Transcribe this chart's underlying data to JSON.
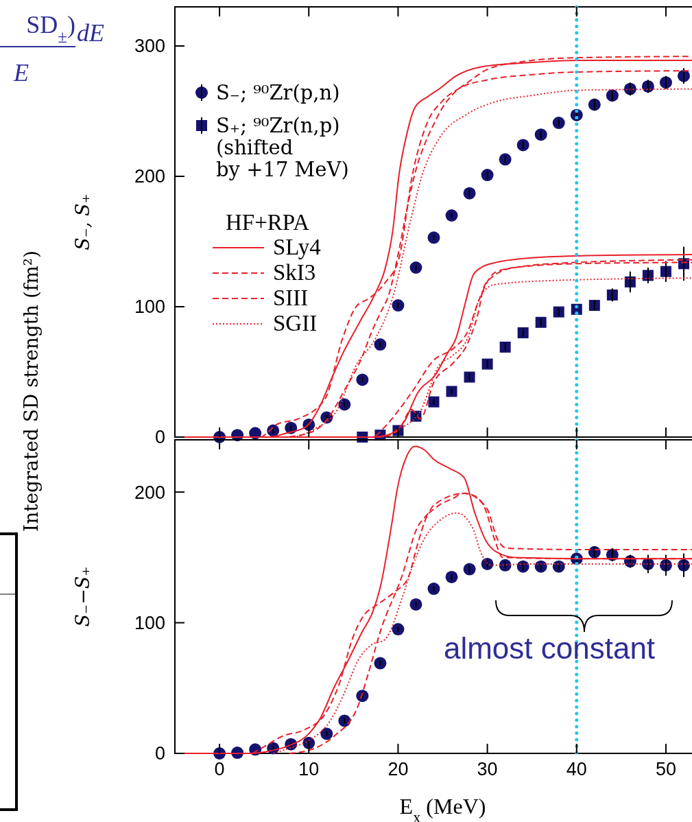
{
  "chart_data": [
    {
      "type": "line",
      "ylabel": "S₋, S₊",
      "xlim": [
        -5,
        53
      ],
      "xticks": [
        0,
        10,
        20,
        30,
        40,
        50
      ],
      "ylim": [
        0,
        330
      ],
      "yticks": [
        0,
        100,
        200,
        300
      ],
      "tick_labels": "y",
      "grid": false,
      "legend": "top left",
      "legend_title": "HF+RPA",
      "annotations": [
        "Integrated SD strength (fm²)",
        "SD$_{±}$)",
        "dE",
        "E"
      ],
      "ref_lines": [
        {
          "axis": "x",
          "value": 40,
          "color": "#22c6f0",
          "line_style": "dotted"
        }
      ],
      "series": [
        {
          "name": "S₋; ⁹⁰Zr(p,n)",
          "type": "scatter",
          "marker": "circle",
          "color": "#15126e",
          "x": [
            0,
            2,
            4,
            6,
            8,
            10,
            12,
            14,
            16,
            18,
            20,
            22,
            24,
            26,
            28,
            30,
            32,
            34,
            36,
            38,
            40,
            42,
            44,
            46,
            48,
            50,
            52
          ],
          "values": [
            0,
            1.5,
            3,
            5,
            7,
            9.5,
            15,
            25,
            44,
            71,
            101,
            130,
            153,
            170,
            187,
            201,
            213,
            224,
            232,
            241,
            247,
            255,
            262,
            267,
            269,
            272,
            277
          ],
          "errors": [
            null,
            null,
            null,
            2,
            2,
            2,
            2,
            2,
            2,
            2,
            2,
            2,
            2,
            2,
            3,
            3,
            3,
            3,
            3,
            3,
            4,
            4,
            4,
            5,
            5,
            5,
            6
          ]
        },
        {
          "name": "S₊; ⁹⁰Zr(n,p)\n(shifted\n by +17 MeV)",
          "type": "scatter",
          "marker": "square",
          "color": "#15126e",
          "x": [
            16,
            18,
            20,
            22,
            24,
            26,
            28,
            30,
            32,
            34,
            36,
            38,
            40,
            42,
            44,
            46,
            48,
            50,
            52
          ],
          "values": [
            0,
            1.5,
            5,
            16,
            27,
            35,
            46,
            56,
            69,
            80,
            88,
            96,
            98,
            101,
            109,
            119,
            124,
            127,
            133
          ],
          "errors": [
            null,
            null,
            2,
            2,
            2,
            2,
            3,
            3,
            3,
            3,
            3,
            3,
            null,
            4,
            5,
            8,
            6,
            8,
            13
          ]
        },
        {
          "name": "SLy4",
          "line_style": "solid",
          "color": "#e8202a",
          "x": [
            -4,
            5.5,
            7.5,
            9.7,
            11.2,
            12.5,
            13.8,
            15.6,
            17.5,
            18.5,
            19.4,
            20.1,
            21,
            21.5,
            21.9,
            23.3,
            24.6,
            26.5,
            29.3,
            34,
            40.3,
            53
          ],
          "values": [
            0,
            0,
            3,
            8,
            23,
            44,
            64,
            87,
            111,
            128,
            158,
            201,
            233,
            246,
            253,
            261,
            267,
            277,
            284,
            287,
            289,
            289
          ]
        },
        {
          "name": "SkI3",
          "line_style": "dashed",
          "color": "#e8202a",
          "x": [
            -4,
            7,
            10,
            12,
            14,
            16,
            17,
            18,
            19,
            20,
            21,
            22,
            23,
            24,
            25,
            26,
            28,
            30,
            34,
            40,
            53
          ],
          "values": [
            0,
            0,
            3,
            13,
            36,
            62,
            80,
            95,
            110,
            140,
            175,
            205,
            225,
            240,
            253,
            262,
            273,
            282,
            288,
            291,
            292
          ]
        },
        {
          "name": "SIII",
          "line_style": "dashed",
          "color": "#e8202a",
          "x": [
            -4,
            4.5,
            6.5,
            8.8,
            11.8,
            13.8,
            15.3,
            16.9,
            18.5,
            20.1,
            21.6,
            23.2,
            25,
            27,
            30,
            35,
            40,
            53
          ],
          "values": [
            0,
            0,
            10,
            14,
            29,
            76,
            100,
            107,
            118,
            137,
            201,
            240,
            258,
            268,
            274,
            278,
            280,
            281
          ]
        },
        {
          "name": "SGII",
          "line_style": "dotted",
          "color": "#e8202a",
          "x": [
            -4,
            8,
            10.6,
            13.2,
            15.3,
            17.5,
            19.4,
            21.5,
            22.7,
            24.6,
            27.8,
            30.8,
            35,
            40,
            53
          ],
          "values": [
            0,
            0,
            6,
            21,
            55,
            76,
            107,
            169,
            201,
            229,
            248,
            257,
            262,
            266,
            267
          ]
        },
        {
          "line_style": "solid",
          "color": "#e8202a",
          "x": [
            -4,
            17,
            18.8,
            20.7,
            22.2,
            24.2,
            25.5,
            26.5,
            27.5,
            28.4,
            29.3,
            31,
            34,
            40,
            53
          ],
          "values": [
            0,
            0,
            1.6,
            12,
            34,
            48,
            64,
            76,
            102,
            124,
            130,
            134,
            137,
            139,
            140
          ]
        },
        {
          "line_style": "dashed",
          "color": "#e8202a",
          "x": [
            -4,
            18,
            20,
            21.5,
            22.5,
            24,
            26.2,
            27.8,
            29,
            29.6,
            30.8,
            33,
            40,
            53
          ],
          "values": [
            0,
            0,
            5,
            21,
            14,
            42,
            57,
            72,
            96,
            115,
            124,
            130,
            134,
            136
          ]
        },
        {
          "line_style": "dashed",
          "color": "#e8202a",
          "x": [
            -4,
            17,
            18.8,
            20,
            21.6,
            24,
            26.2,
            27.8,
            29,
            30.8,
            33,
            40,
            53
          ],
          "values": [
            0,
            0,
            10,
            20,
            35,
            59,
            68,
            81,
            104,
            126,
            130,
            133,
            134
          ]
        },
        {
          "line_style": "dotted",
          "color": "#e8202a",
          "x": [
            -4,
            18,
            20.1,
            22.5,
            24.6,
            26,
            27.8,
            29.3,
            30.8,
            37,
            53
          ],
          "values": [
            0,
            0,
            6,
            20,
            55,
            62,
            76,
            109,
            117,
            120,
            122
          ]
        }
      ]
    },
    {
      "type": "line",
      "ylabel": "S₋−S₊",
      "xlabel": "E$_{x}$ (MeV)",
      "xlim": [
        -5,
        53
      ],
      "xticks": [
        0,
        10,
        20,
        30,
        40,
        50
      ],
      "ylim": [
        0,
        240
      ],
      "yticks": [
        0,
        100,
        200
      ],
      "grid": false,
      "annotations": [
        "almost constant"
      ],
      "ref_lines": [
        {
          "axis": "x",
          "value": 40,
          "color": "#22c6f0",
          "line_style": "dotted"
        }
      ],
      "series": [
        {
          "type": "scatter",
          "marker": "circle",
          "color": "#15126e",
          "x": [
            0,
            2,
            4,
            6,
            8,
            10,
            12,
            14,
            16,
            18,
            20,
            22,
            24,
            26,
            28,
            30,
            32,
            34,
            36,
            38,
            40,
            42,
            44,
            46,
            48,
            50,
            52
          ],
          "values": [
            0,
            0.5,
            3,
            4,
            7,
            8,
            15,
            25,
            44,
            69,
            95,
            114,
            126,
            135,
            141,
            145,
            144,
            143,
            143,
            143,
            149,
            154,
            152,
            147,
            145,
            144,
            144
          ],
          "errors": [
            null,
            null,
            null,
            2,
            2,
            2,
            2,
            2,
            2,
            2,
            2,
            2,
            2,
            2,
            3,
            3,
            3,
            3,
            3,
            3,
            3,
            4,
            5,
            5,
            7,
            8,
            9
          ]
        },
        {
          "line_style": "solid",
          "color": "#e8202a",
          "x": [
            -4,
            3.5,
            5.7,
            7.8,
            10,
            11.3,
            12.8,
            14.4,
            15.9,
            17.2,
            18,
            19.3,
            19.9,
            21,
            21.9,
            23,
            24,
            25.8,
            27.4,
            28.6,
            29.9,
            31.7,
            33,
            40,
            53
          ],
          "values": [
            0,
            0,
            2,
            6,
            15,
            27,
            50,
            71,
            92,
            109,
            127,
            176,
            202,
            228,
            235,
            232,
            225,
            218,
            211,
            184,
            162,
            152,
            150,
            149,
            149
          ]
        },
        {
          "line_style": "dashed",
          "color": "#e8202a",
          "x": [
            7.8,
            10.3,
            12.8,
            15.5,
            16.7,
            18,
            20.5,
            22.1,
            23.4,
            24,
            27.4,
            29.9,
            31.2,
            32.2,
            40,
            53
          ],
          "values": [
            0,
            3,
            13,
            36,
            62,
            93,
            137,
            172,
            184,
            190,
            199,
            188,
            163,
            157,
            156,
            156
          ]
        },
        {
          "line_style": "dashed",
          "color": "#e8202a",
          "x": [
            3.7,
            5.2,
            7,
            9.5,
            11.8,
            13.4,
            14.9,
            16.2,
            17.5,
            19.5,
            21.1,
            22.1,
            23.2,
            24.2,
            26.1,
            27.4,
            28.6,
            29.7,
            30.9,
            31.7,
            40,
            53
          ],
          "values": [
            0,
            6,
            13,
            18,
            30,
            53,
            88,
            106,
            113,
            123,
            134,
            158,
            181,
            188,
            195,
            199,
            197,
            188,
            162,
            150,
            149,
            149
          ]
        },
        {
          "line_style": "dotted",
          "color": "#e8202a",
          "x": [
            6,
            7.8,
            10.3,
            12.4,
            13.9,
            15.5,
            17,
            18.5,
            20.5,
            21.5,
            23,
            24.8,
            26.6,
            28.4,
            29.2,
            30.5,
            35,
            53
          ],
          "values": [
            0,
            4,
            11,
            25,
            45,
            71,
            83,
            87,
            120,
            141,
            165,
            179,
            184,
            172,
            155,
            144,
            145,
            145
          ]
        }
      ]
    }
  ]
}
